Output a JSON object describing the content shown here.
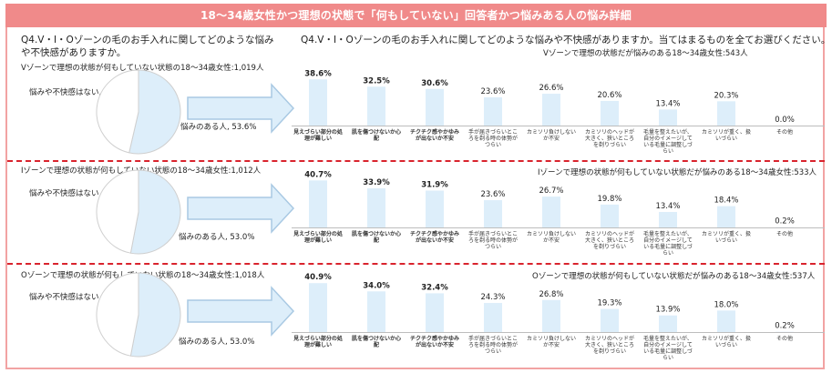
{
  "page": {
    "title": "18～34歳女性かつ理想の状態で「何もしていない」回答者かつ悩みある人の悩み詳細",
    "left_question": "Q4.V・I・Oゾーンの毛のお手入れに関してどのような悩みや不快感がありますか。",
    "right_question": "Q4.V・I・Oゾーンの毛のお手入れに関してどのような悩みや不快感がありますか。当てはまるものを全てお選びください。"
  },
  "chart_data": [
    {
      "type": "pie",
      "title": "Vゾーンで理想の状態が何もしていない状態の18～34歳女性:1,019人",
      "slices": [
        {
          "label": "悩みや不快感はない",
          "value": 46.4,
          "display": "悩みや不快感はない, 46.4%",
          "color": "#ffffff"
        },
        {
          "label": "悩みのある人",
          "value": 53.6,
          "display": "悩みのある人, 53.6%",
          "color": "#ddeefa"
        }
      ]
    },
    {
      "type": "bar",
      "title": "Vゾーンで理想の状態だが悩みのある18～34歳女性:543人",
      "categories": [
        "見えづらい部分の処理が難しい",
        "肌を傷つけないか心配",
        "チクチク感やかゆみが出ないか不安",
        "手が届きづらいところを剃る時の体勢がつらい",
        "カミソリ負けしないか不安",
        "カミソリのヘッドが大きく、狭いところを剃りづらい",
        "毛量を整えたいが、自分のイメージしている毛量に調整しづらい",
        "カミソリが重く、扱いづらい",
        "その他"
      ],
      "values": [
        38.6,
        32.5,
        30.6,
        23.6,
        26.6,
        20.6,
        13.4,
        20.3,
        0.0
      ],
      "labels": [
        "38.6%",
        "32.5%",
        "30.6%",
        "23.6%",
        "26.6%",
        "20.6%",
        "13.4%",
        "20.3%",
        "0.0%"
      ],
      "bold_top": 3,
      "ylim": [
        0,
        45
      ],
      "color": "#ddeefa"
    },
    {
      "type": "pie",
      "title": "Iゾーンで理想の状態が何もしていない状態の18～34歳女性:1,012人",
      "slices": [
        {
          "label": "悩みや不快感はない",
          "value": 47.0,
          "display": "悩みや不快感はない, 47.0%",
          "color": "#ffffff"
        },
        {
          "label": "悩みのある人",
          "value": 53.0,
          "display": "悩みのある人, 53.0%",
          "color": "#ddeefa"
        }
      ]
    },
    {
      "type": "bar",
      "title": "Iゾーンで理想の状態が何もしていない状態だが悩みのある18～34歳女性:533人",
      "categories": [
        "見えづらい部分の処理が難しい",
        "肌を傷つけないか心配",
        "チクチク感やかゆみが出ないか不安",
        "手が届きづらいところを剃る時の体勢がつらい",
        "カミソリ負けしないか不安",
        "カミソリのヘッドが大きく、狭いところを剃りづらい",
        "毛量を整えたいが、自分のイメージしている毛量に調整しづらい",
        "カミソリが重く、扱いづらい",
        "その他"
      ],
      "values": [
        40.7,
        33.9,
        31.9,
        23.6,
        26.7,
        19.8,
        13.4,
        18.4,
        0.2
      ],
      "labels": [
        "40.7%",
        "33.9%",
        "31.9%",
        "23.6%",
        "26.7%",
        "19.8%",
        "13.4%",
        "18.4%",
        "0.2%"
      ],
      "bold_top": 3,
      "ylim": [
        0,
        45
      ],
      "color": "#ddeefa"
    },
    {
      "type": "pie",
      "title": "Oゾーンで理想の状態が何もしていない状態の18～34歳女性:1,018人",
      "slices": [
        {
          "label": "悩みや不快感はない",
          "value": 47.0,
          "display": "悩みや不快感はない, 47.0%",
          "color": "#ffffff"
        },
        {
          "label": "悩みのある人",
          "value": 53.0,
          "display": "悩みのある人, 53.0%",
          "color": "#ddeefa"
        }
      ]
    },
    {
      "type": "bar",
      "title": "Oゾーンで理想の状態が何もしていない状態だが悩みのある18～34歳女性:537人",
      "categories": [
        "見えづらい部分の処理が難しい",
        "肌を傷つけないか心配",
        "チクチク感やかゆみが出ないか不安",
        "手が届きづらいところを剃る時の体勢がつらい",
        "カミソリ負けしないか不安",
        "カミソリのヘッドが大きく、狭いところを剃りづらい",
        "毛量を整えたいが、自分のイメージしている毛量に調整しづらい",
        "カミソリが重く、扱いづらい",
        "その他"
      ],
      "values": [
        40.9,
        34.0,
        32.4,
        24.3,
        26.8,
        19.3,
        13.9,
        18.0,
        0.2
      ],
      "labels": [
        "40.9%",
        "34.0%",
        "32.4%",
        "24.3%",
        "26.8%",
        "19.3%",
        "13.9%",
        "18.0%",
        "0.2%"
      ],
      "bold_top": 3,
      "ylim": [
        0,
        45
      ],
      "color": "#ddeefa"
    }
  ]
}
